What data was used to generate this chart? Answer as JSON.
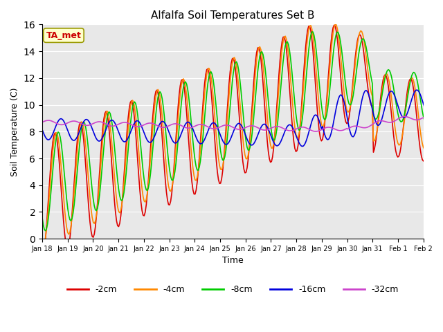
{
  "title": "Alfalfa Soil Temperatures Set B",
  "xlabel": "Time",
  "ylabel": "Soil Temperature (C)",
  "ylim": [
    0,
    16
  ],
  "yticks": [
    0,
    2,
    4,
    6,
    8,
    10,
    12,
    14,
    16
  ],
  "annotation_text": "TA_met",
  "annotation_box_color": "#ffffcc",
  "annotation_border_color": "#999900",
  "annotation_text_color": "#cc0000",
  "bg_color": "#e8e8e8",
  "colors": {
    "-2cm": "#dd0000",
    "-4cm": "#ff8800",
    "-8cm": "#00cc00",
    "-16cm": "#0000dd",
    "-32cm": "#cc44cc"
  },
  "legend_labels": [
    "-2cm",
    "-4cm",
    "-8cm",
    "-16cm",
    "-32cm"
  ],
  "x_tick_labels": [
    "Jan 18",
    "Jan 19",
    "Jan 20",
    "Jan 21",
    "Jan 22",
    "Jan 23",
    "Jan 24",
    "Jan 25",
    "Jan 26",
    "Jan 27",
    "Jan 28",
    "Jan 29",
    "Jan 30",
    "Jan 31",
    "Feb 1",
    "Feb 2"
  ],
  "line_width": 1.2
}
